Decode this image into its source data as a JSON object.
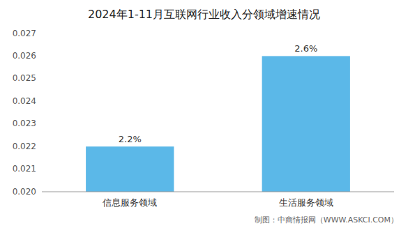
{
  "chart_data": {
    "type": "bar",
    "title": "2024年1-11月互联网行业收入分领域增速情况",
    "categories": [
      "信息服务领域",
      "生活服务领域"
    ],
    "values": [
      0.022,
      0.026
    ],
    "value_labels": [
      "2.2%",
      "2.6%"
    ],
    "data_labels": true,
    "color": "#5BB8E8",
    "ylim": [
      0.02,
      0.027
    ],
    "yticks": [
      {
        "value": 0.02,
        "label": "0.020"
      },
      0.021,
      0.022,
      0.023,
      0.024,
      0.025,
      0.026,
      0.027
    ],
    "grid": false,
    "annotations": [
      "制图：中商情报网（WWW.ASKCI.COM）"
    ]
  }
}
